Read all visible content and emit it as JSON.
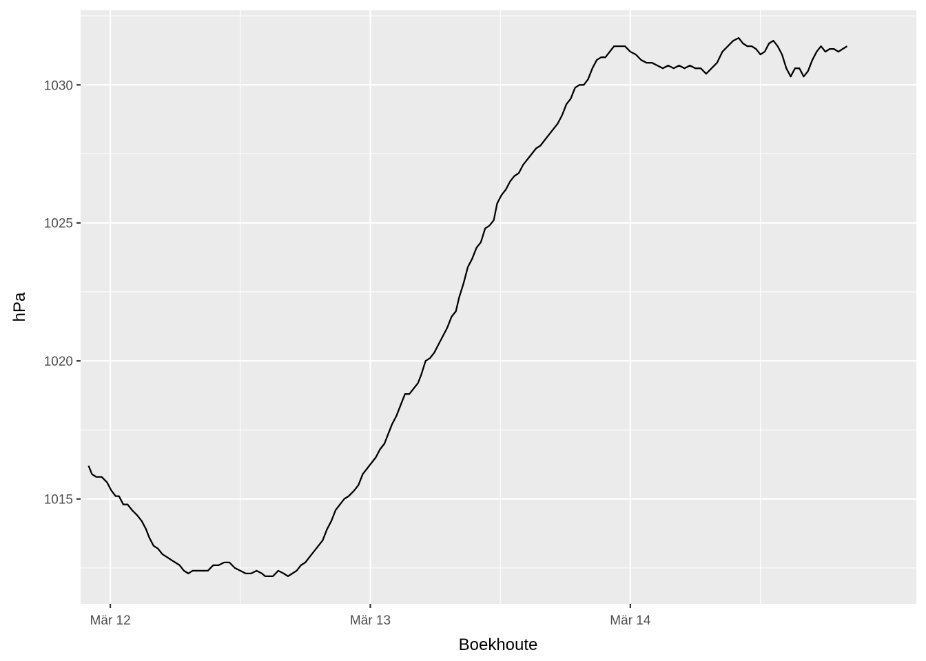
{
  "chart_data": {
    "type": "line",
    "title": "",
    "xlabel": "Boekhoute",
    "ylabel": "hPa",
    "x_unit": "hours since Mär 12 00:00",
    "xlim": [
      -2.74,
      74.4
    ],
    "ylim": [
      1011.2,
      1032.7
    ],
    "x_ticks": [
      {
        "value": 0,
        "label": "Mär 12"
      },
      {
        "value": 24,
        "label": "Mär 13"
      },
      {
        "value": 48,
        "label": "Mär 14"
      }
    ],
    "x_minor_ticks": [
      12,
      36,
      60
    ],
    "y_ticks": [
      {
        "value": 1015,
        "label": "1015"
      },
      {
        "value": 1020,
        "label": "1020"
      },
      {
        "value": 1025,
        "label": "1025"
      },
      {
        "value": 1030,
        "label": "1030"
      }
    ],
    "y_minor_ticks": [
      1012.5,
      1017.5,
      1022.5,
      1027.5,
      1032.5
    ],
    "grid": true,
    "colors": {
      "panel": "#EBEBEB",
      "grid": "#FFFFFF",
      "line": "#000000",
      "tick": "#333333",
      "tick_label": "#4D4D4D"
    },
    "series": [
      {
        "color": "#000000",
        "points": [
          [
            -2.0,
            1016.2
          ],
          [
            -1.7,
            1015.9
          ],
          [
            -1.3,
            1015.8
          ],
          [
            -0.8,
            1015.8
          ],
          [
            -0.3,
            1015.6
          ],
          [
            0.1,
            1015.3
          ],
          [
            0.5,
            1015.1
          ],
          [
            0.8,
            1015.1
          ],
          [
            1.2,
            1014.8
          ],
          [
            1.6,
            1014.8
          ],
          [
            2.0,
            1014.6
          ],
          [
            2.5,
            1014.4
          ],
          [
            2.9,
            1014.2
          ],
          [
            3.3,
            1013.9
          ],
          [
            3.6,
            1013.6
          ],
          [
            4.0,
            1013.3
          ],
          [
            4.4,
            1013.2
          ],
          [
            4.8,
            1013.0
          ],
          [
            5.2,
            1012.9
          ],
          [
            5.6,
            1012.8
          ],
          [
            6.0,
            1012.7
          ],
          [
            6.4,
            1012.6
          ],
          [
            6.8,
            1012.4
          ],
          [
            7.2,
            1012.3
          ],
          [
            7.6,
            1012.4
          ],
          [
            8.0,
            1012.4
          ],
          [
            8.5,
            1012.4
          ],
          [
            9.0,
            1012.4
          ],
          [
            9.5,
            1012.6
          ],
          [
            10.0,
            1012.6
          ],
          [
            10.5,
            1012.7
          ],
          [
            11.0,
            1012.7
          ],
          [
            11.5,
            1012.5
          ],
          [
            12.0,
            1012.4
          ],
          [
            12.5,
            1012.3
          ],
          [
            13.0,
            1012.3
          ],
          [
            13.5,
            1012.4
          ],
          [
            14.0,
            1012.3
          ],
          [
            14.3,
            1012.2
          ],
          [
            14.6,
            1012.2
          ],
          [
            15.0,
            1012.2
          ],
          [
            15.5,
            1012.4
          ],
          [
            16.0,
            1012.3
          ],
          [
            16.4,
            1012.2
          ],
          [
            16.8,
            1012.3
          ],
          [
            17.2,
            1012.4
          ],
          [
            17.6,
            1012.6
          ],
          [
            18.0,
            1012.7
          ],
          [
            18.4,
            1012.9
          ],
          [
            18.8,
            1013.1
          ],
          [
            19.2,
            1013.3
          ],
          [
            19.6,
            1013.5
          ],
          [
            20.0,
            1013.9
          ],
          [
            20.4,
            1014.2
          ],
          [
            20.8,
            1014.6
          ],
          [
            21.2,
            1014.8
          ],
          [
            21.6,
            1015.0
          ],
          [
            22.0,
            1015.1
          ],
          [
            22.5,
            1015.3
          ],
          [
            22.9,
            1015.5
          ],
          [
            23.3,
            1015.9
          ],
          [
            23.7,
            1016.1
          ],
          [
            24.1,
            1016.3
          ],
          [
            24.5,
            1016.5
          ],
          [
            24.9,
            1016.8
          ],
          [
            25.3,
            1017.0
          ],
          [
            25.6,
            1017.3
          ],
          [
            26.0,
            1017.7
          ],
          [
            26.4,
            1018.0
          ],
          [
            26.8,
            1018.4
          ],
          [
            27.2,
            1018.8
          ],
          [
            27.6,
            1018.8
          ],
          [
            28.0,
            1019.0
          ],
          [
            28.4,
            1019.2
          ],
          [
            28.7,
            1019.5
          ],
          [
            29.1,
            1020.0
          ],
          [
            29.5,
            1020.1
          ],
          [
            29.9,
            1020.3
          ],
          [
            30.3,
            1020.6
          ],
          [
            30.7,
            1020.9
          ],
          [
            31.1,
            1021.2
          ],
          [
            31.5,
            1021.6
          ],
          [
            31.9,
            1021.8
          ],
          [
            32.2,
            1022.3
          ],
          [
            32.6,
            1022.8
          ],
          [
            33.0,
            1023.4
          ],
          [
            33.4,
            1023.7
          ],
          [
            33.8,
            1024.1
          ],
          [
            34.2,
            1024.3
          ],
          [
            34.6,
            1024.8
          ],
          [
            35.0,
            1024.9
          ],
          [
            35.4,
            1025.1
          ],
          [
            35.7,
            1025.7
          ],
          [
            36.1,
            1026.0
          ],
          [
            36.5,
            1026.2
          ],
          [
            36.9,
            1026.5
          ],
          [
            37.3,
            1026.7
          ],
          [
            37.7,
            1026.8
          ],
          [
            38.1,
            1027.1
          ],
          [
            38.5,
            1027.3
          ],
          [
            38.9,
            1027.5
          ],
          [
            39.3,
            1027.7
          ],
          [
            39.7,
            1027.8
          ],
          [
            40.1,
            1028.0
          ],
          [
            40.5,
            1028.2
          ],
          [
            40.9,
            1028.4
          ],
          [
            41.3,
            1028.6
          ],
          [
            41.7,
            1028.9
          ],
          [
            42.1,
            1029.3
          ],
          [
            42.5,
            1029.5
          ],
          [
            42.9,
            1029.9
          ],
          [
            43.3,
            1030.0
          ],
          [
            43.7,
            1030.0
          ],
          [
            44.1,
            1030.2
          ],
          [
            44.5,
            1030.6
          ],
          [
            44.9,
            1030.9
          ],
          [
            45.3,
            1031.0
          ],
          [
            45.7,
            1031.0
          ],
          [
            46.1,
            1031.2
          ],
          [
            46.5,
            1031.4
          ],
          [
            47.0,
            1031.4
          ],
          [
            47.5,
            1031.4
          ],
          [
            48.0,
            1031.2
          ],
          [
            48.5,
            1031.1
          ],
          [
            49.0,
            1030.9
          ],
          [
            49.5,
            1030.8
          ],
          [
            50.0,
            1030.8
          ],
          [
            50.5,
            1030.7
          ],
          [
            51.0,
            1030.6
          ],
          [
            51.5,
            1030.7
          ],
          [
            52.0,
            1030.6
          ],
          [
            52.5,
            1030.7
          ],
          [
            53.0,
            1030.6
          ],
          [
            53.5,
            1030.7
          ],
          [
            54.0,
            1030.6
          ],
          [
            54.5,
            1030.6
          ],
          [
            55.0,
            1030.4
          ],
          [
            55.5,
            1030.6
          ],
          [
            56.0,
            1030.8
          ],
          [
            56.5,
            1031.2
          ],
          [
            57.0,
            1031.4
          ],
          [
            57.5,
            1031.6
          ],
          [
            58.0,
            1031.7
          ],
          [
            58.4,
            1031.5
          ],
          [
            58.8,
            1031.4
          ],
          [
            59.2,
            1031.4
          ],
          [
            59.6,
            1031.3
          ],
          [
            60.0,
            1031.1
          ],
          [
            60.4,
            1031.2
          ],
          [
            60.8,
            1031.5
          ],
          [
            61.2,
            1031.6
          ],
          [
            61.6,
            1031.4
          ],
          [
            62.0,
            1031.1
          ],
          [
            62.4,
            1030.6
          ],
          [
            62.8,
            1030.3
          ],
          [
            63.2,
            1030.6
          ],
          [
            63.6,
            1030.6
          ],
          [
            64.0,
            1030.3
          ],
          [
            64.4,
            1030.5
          ],
          [
            64.8,
            1030.9
          ],
          [
            65.2,
            1031.2
          ],
          [
            65.6,
            1031.4
          ],
          [
            66.0,
            1031.2
          ],
          [
            66.4,
            1031.3
          ],
          [
            66.8,
            1031.3
          ],
          [
            67.2,
            1031.2
          ],
          [
            67.6,
            1031.3
          ],
          [
            68.0,
            1031.4
          ]
        ]
      }
    ]
  }
}
